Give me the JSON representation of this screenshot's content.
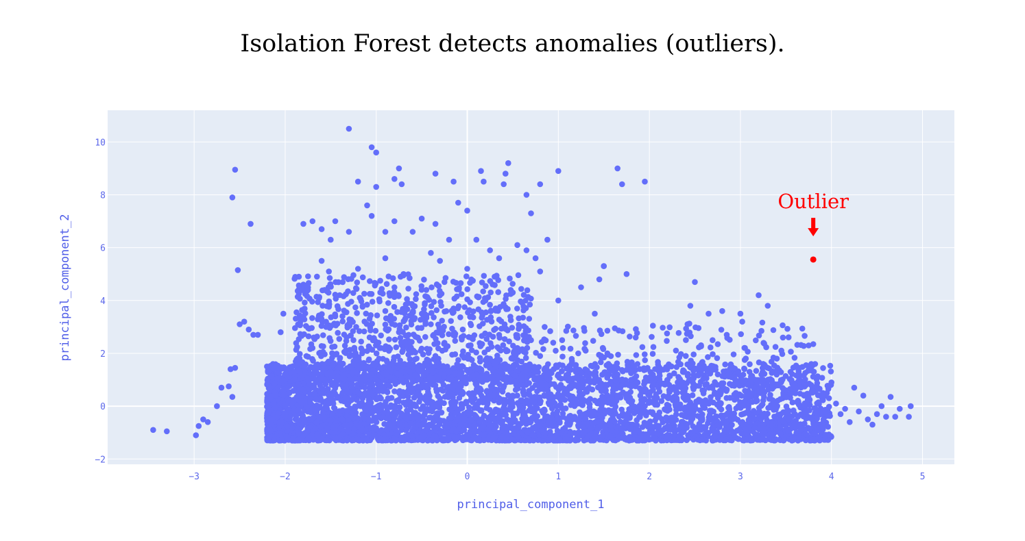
{
  "title": "Isolation Forest detects anomalies (outliers).",
  "colors": {
    "plot_bg": "#e5ecf6",
    "grid": "#ffffff",
    "marker": "#636efa",
    "outlier": "#ff0000",
    "tick_text": "#5b67ea"
  },
  "chart_data": {
    "type": "scatter",
    "title": "Isolation Forest detects anomalies (outliers).",
    "xlabel": "principal_component_1",
    "ylabel": "principal_component_2",
    "xlim": [
      -3.95,
      5.35
    ],
    "ylim": [
      -2.2,
      11.2
    ],
    "x_ticks": [
      -3,
      -2,
      -1,
      0,
      1,
      2,
      3,
      4,
      5
    ],
    "x_tick_labels": [
      "−3",
      "−2",
      "−1",
      "0",
      "1",
      "2",
      "3",
      "4",
      "5"
    ],
    "y_ticks": [
      -2,
      0,
      2,
      4,
      6,
      8,
      10
    ],
    "y_tick_labels": [
      "−2",
      "0",
      "2",
      "4",
      "6",
      "8",
      "10"
    ],
    "grid": true,
    "dense_region": {
      "description_points": "approximate dense cluster of ~6000 points",
      "x_range": [
        -2.2,
        4.0
      ],
      "y_range": [
        -1.3,
        1.6
      ]
    },
    "series": [
      {
        "points": [
          [
            -3.45,
            -0.9
          ],
          [
            -3.3,
            -0.95
          ],
          [
            -2.98,
            -1.1
          ],
          [
            -2.95,
            -0.75
          ],
          [
            -2.9,
            -0.5
          ],
          [
            -2.85,
            -0.6
          ],
          [
            -2.75,
            0.0
          ],
          [
            -2.7,
            0.7
          ],
          [
            -2.62,
            0.75
          ],
          [
            -2.6,
            1.4
          ],
          [
            -2.58,
            0.35
          ],
          [
            -2.55,
            1.45
          ],
          [
            -2.5,
            3.1
          ],
          [
            -2.45,
            3.2
          ],
          [
            -2.4,
            2.9
          ],
          [
            -2.35,
            2.7
          ],
          [
            -2.3,
            2.7
          ],
          [
            -2.2,
            1.5
          ],
          [
            -2.1,
            0.4
          ],
          [
            -2.05,
            2.8
          ],
          [
            -2.02,
            3.5
          ],
          [
            -1.9,
            1.3
          ],
          [
            -1.85,
            4.9
          ],
          [
            -1.8,
            4.6
          ],
          [
            -1.75,
            4.4
          ],
          [
            -1.7,
            2.2
          ],
          [
            -1.6,
            3.3
          ],
          [
            -1.55,
            3.0
          ],
          [
            -1.52,
            5.1
          ],
          [
            -1.45,
            3.4
          ],
          [
            -1.4,
            1.8
          ],
          [
            -1.35,
            1.2
          ],
          [
            -1.3,
            0.5
          ],
          [
            -1.25,
            2.5
          ],
          [
            -1.22,
            3.0
          ],
          [
            -1.18,
            4.1
          ],
          [
            -1.15,
            2.1
          ],
          [
            -1.1,
            1.5
          ],
          [
            -1.05,
            0.8
          ],
          [
            -0.95,
            2.2
          ],
          [
            -0.9,
            3.6
          ],
          [
            -0.85,
            1.1
          ],
          [
            -0.8,
            4.3
          ],
          [
            -0.75,
            2.8
          ],
          [
            -0.7,
            0.9
          ],
          [
            -0.65,
            3.9
          ],
          [
            -0.6,
            1.6
          ],
          [
            -0.55,
            2.6
          ],
          [
            -0.5,
            0.7
          ],
          [
            -0.45,
            4.4
          ],
          [
            -0.4,
            3.1
          ],
          [
            -0.35,
            1.9
          ],
          [
            -0.3,
            5.5
          ],
          [
            -0.25,
            2.4
          ],
          [
            -0.2,
            1.3
          ],
          [
            -0.15,
            3.7
          ],
          [
            -0.1,
            0.6
          ],
          [
            -0.05,
            2.9
          ],
          [
            0.05,
            3.4
          ],
          [
            0.1,
            1.2
          ],
          [
            0.15,
            2.3
          ],
          [
            0.2,
            4.0
          ],
          [
            0.25,
            1.8
          ],
          [
            0.3,
            0.9
          ],
          [
            0.35,
            2.7
          ],
          [
            0.4,
            3.8
          ],
          [
            0.45,
            1.5
          ],
          [
            0.5,
            0.4
          ],
          [
            0.55,
            2.2
          ],
          [
            0.6,
            1.0
          ],
          [
            0.65,
            5.9
          ],
          [
            0.7,
            2.5
          ],
          [
            0.75,
            0.8
          ],
          [
            0.8,
            1.9
          ],
          [
            0.85,
            3.0
          ],
          [
            0.9,
            0.3
          ],
          [
            0.95,
            1.4
          ],
          [
            1.0,
            4.0
          ],
          [
            1.05,
            2.2
          ],
          [
            1.1,
            0.6
          ],
          [
            1.15,
            1.7
          ],
          [
            1.2,
            1.1
          ],
          [
            1.25,
            0.2
          ],
          [
            1.3,
            2.1
          ],
          [
            1.35,
            0.9
          ],
          [
            1.4,
            3.5
          ],
          [
            1.45,
            4.8
          ],
          [
            1.5,
            5.3
          ],
          [
            1.55,
            1.6
          ],
          [
            1.6,
            0.5
          ],
          [
            1.65,
            1.2
          ],
          [
            1.7,
            0.8
          ],
          [
            1.75,
            0.3
          ],
          [
            1.8,
            1.0
          ],
          [
            1.85,
            2.6
          ],
          [
            1.9,
            0.4
          ],
          [
            1.95,
            1.4
          ],
          [
            2.0,
            0.2
          ],
          [
            2.1,
            0.7
          ],
          [
            2.2,
            1.0
          ],
          [
            2.3,
            0.3
          ],
          [
            2.4,
            1.9
          ],
          [
            2.45,
            3.8
          ],
          [
            2.5,
            4.7
          ],
          [
            2.55,
            1.2
          ],
          [
            2.6,
            0.6
          ],
          [
            2.65,
            3.5
          ],
          [
            2.7,
            1.4
          ],
          [
            2.75,
            0.4
          ],
          [
            2.8,
            3.6
          ],
          [
            2.85,
            2.7
          ],
          [
            2.9,
            1.1
          ],
          [
            2.95,
            0.5
          ],
          [
            3.0,
            3.5
          ],
          [
            3.02,
            3.2
          ],
          [
            3.05,
            2.2
          ],
          [
            3.1,
            1.3
          ],
          [
            3.15,
            0.7
          ],
          [
            3.2,
            4.2
          ],
          [
            3.25,
            1.6
          ],
          [
            3.3,
            3.8
          ],
          [
            3.35,
            0.9
          ],
          [
            3.4,
            1.8
          ],
          [
            3.45,
            2.1
          ],
          [
            3.5,
            0.6
          ],
          [
            3.55,
            1.3
          ],
          [
            3.6,
            0.8
          ],
          [
            3.65,
            1.0
          ],
          [
            3.7,
            0.4
          ],
          [
            3.75,
            2.3
          ],
          [
            3.8,
            2.35
          ],
          [
            3.85,
            0.7
          ],
          [
            3.9,
            0.3
          ],
          [
            3.95,
            0.5
          ],
          [
            4.0,
            0.9
          ],
          [
            4.05,
            0.1
          ],
          [
            4.1,
            -0.3
          ],
          [
            4.15,
            -0.1
          ],
          [
            4.2,
            -0.6
          ],
          [
            4.25,
            0.7
          ],
          [
            4.3,
            -0.2
          ],
          [
            4.35,
            0.4
          ],
          [
            4.4,
            -0.5
          ],
          [
            4.45,
            -0.7
          ],
          [
            4.5,
            -0.3
          ],
          [
            4.55,
            0.0
          ],
          [
            4.6,
            -0.4
          ],
          [
            4.65,
            0.35
          ],
          [
            4.7,
            -0.4
          ],
          [
            4.75,
            -0.1
          ],
          [
            4.85,
            -0.4
          ],
          [
            4.87,
            0.0
          ],
          [
            -2.58,
            7.9
          ],
          [
            -2.55,
            8.95
          ],
          [
            -2.52,
            5.15
          ],
          [
            -2.38,
            6.9
          ],
          [
            -1.3,
            10.5
          ],
          [
            -1.05,
            9.8
          ],
          [
            -1.0,
            9.6
          ],
          [
            -1.2,
            8.5
          ],
          [
            -1.0,
            8.3
          ],
          [
            -0.8,
            8.6
          ],
          [
            -0.75,
            9.0
          ],
          [
            -0.72,
            8.4
          ],
          [
            -0.35,
            8.8
          ],
          [
            -0.15,
            8.5
          ],
          [
            0.15,
            8.9
          ],
          [
            0.18,
            8.5
          ],
          [
            0.4,
            8.4
          ],
          [
            0.42,
            8.8
          ],
          [
            0.45,
            9.2
          ],
          [
            0.65,
            8.0
          ],
          [
            0.8,
            8.4
          ],
          [
            1.0,
            8.9
          ],
          [
            1.65,
            9.0
          ],
          [
            1.7,
            8.4
          ],
          [
            1.95,
            8.5
          ],
          [
            -1.8,
            6.9
          ],
          [
            -1.7,
            7.0
          ],
          [
            -1.6,
            6.7
          ],
          [
            -1.5,
            6.3
          ],
          [
            -1.45,
            7.0
          ],
          [
            -1.3,
            6.6
          ],
          [
            -1.1,
            7.6
          ],
          [
            -1.05,
            7.2
          ],
          [
            -0.9,
            6.6
          ],
          [
            -0.8,
            7.0
          ],
          [
            -0.6,
            6.6
          ],
          [
            -0.5,
            7.1
          ],
          [
            -0.35,
            6.9
          ],
          [
            -0.2,
            6.3
          ],
          [
            -0.1,
            7.7
          ],
          [
            0.0,
            7.4
          ],
          [
            0.1,
            6.3
          ],
          [
            0.25,
            5.9
          ],
          [
            0.35,
            5.6
          ],
          [
            0.55,
            6.1
          ],
          [
            0.7,
            7.3
          ],
          [
            0.75,
            5.6
          ],
          [
            0.88,
            6.3
          ],
          [
            1.5,
            5.3
          ],
          [
            1.75,
            5.0
          ],
          [
            -1.6,
            5.5
          ],
          [
            -1.2,
            5.2
          ],
          [
            -0.9,
            5.6
          ],
          [
            -0.7,
            5.0
          ],
          [
            -0.4,
            5.8
          ],
          [
            -0.25,
            4.7
          ],
          [
            0.0,
            5.2
          ],
          [
            0.3,
            4.9
          ],
          [
            0.5,
            4.3
          ],
          [
            0.8,
            5.1
          ],
          [
            1.25,
            4.5
          ]
        ]
      }
    ],
    "outlier": {
      "x": 3.8,
      "y": 5.55
    },
    "annotations": [
      {
        "text": "Outlier",
        "x": 3.8,
        "y": 7.75,
        "arrow": "down"
      }
    ]
  }
}
